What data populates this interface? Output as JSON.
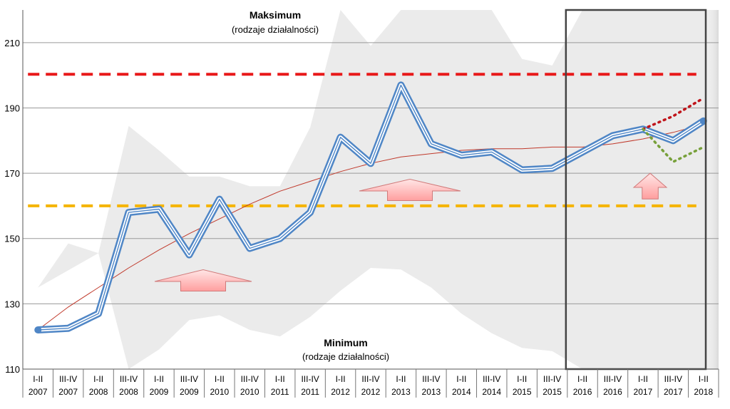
{
  "chart_data": {
    "type": "line",
    "ylim": [
      110,
      220
    ],
    "yticks": [
      "110",
      "130",
      "150",
      "170",
      "190",
      "210"
    ],
    "ytick_values": [
      110,
      130,
      150,
      170,
      190,
      210
    ],
    "categories": [
      [
        "I-II",
        "2007"
      ],
      [
        "III-IV",
        "2007"
      ],
      [
        "I-II",
        "2008"
      ],
      [
        "III-IV",
        "2008"
      ],
      [
        "I-II",
        "2009"
      ],
      [
        "III-IV",
        "2009"
      ],
      [
        "I-II",
        "2010"
      ],
      [
        "III-IV",
        "2010"
      ],
      [
        "I-II",
        "2011"
      ],
      [
        "III-IV",
        "2011"
      ],
      [
        "I-II",
        "2012"
      ],
      [
        "III-IV",
        "2012"
      ],
      [
        "I-II",
        "2013"
      ],
      [
        "III-IV",
        "2013"
      ],
      [
        "I-II",
        "2014"
      ],
      [
        "III-IV",
        "2014"
      ],
      [
        "I-II",
        "2015"
      ],
      [
        "III-IV",
        "2015"
      ],
      [
        "I-II",
        "2016"
      ],
      [
        "III-IV",
        "2016"
      ],
      [
        "I-II",
        "2017"
      ],
      [
        "III-IV",
        "2017"
      ],
      [
        "I-II",
        "2018"
      ]
    ],
    "series": [
      {
        "key": "main",
        "values": [
          122,
          122.5,
          127,
          158,
          159,
          145,
          162,
          147,
          150,
          158,
          181,
          173,
          197,
          179,
          175.5,
          176.5,
          171,
          171.5,
          176.5,
          181.5,
          183.5,
          180,
          186
        ]
      },
      {
        "key": "trend",
        "values": [
          122,
          129,
          135,
          141,
          146.5,
          151.5,
          156,
          160.5,
          164.5,
          167.5,
          170.5,
          173,
          175,
          176,
          177,
          177.5,
          177.5,
          178,
          178,
          179,
          180.5,
          182.5,
          185
        ]
      },
      {
        "key": "max_band",
        "values": [
          null,
          null,
          null,
          184.5,
          177,
          169,
          169,
          166,
          166,
          184,
          220,
          209,
          220,
          220,
          220,
          220,
          205,
          203,
          220,
          220,
          220,
          220,
          220
        ]
      },
      {
        "key": "min_band",
        "values": [
          135,
          148.5,
          145.5,
          110,
          116,
          125,
          126.5,
          122,
          120,
          126,
          134,
          141,
          140.5,
          135,
          127,
          121,
          116.5,
          115.5,
          110,
          110,
          110,
          110,
          110
        ]
      },
      {
        "key": "forecast_up",
        "values": [
          null,
          null,
          null,
          null,
          null,
          null,
          null,
          null,
          null,
          null,
          null,
          null,
          null,
          null,
          null,
          null,
          null,
          null,
          null,
          null,
          183.5,
          187.5,
          193
        ]
      },
      {
        "key": "forecast_down",
        "values": [
          null,
          null,
          null,
          null,
          null,
          null,
          null,
          null,
          null,
          null,
          null,
          null,
          null,
          null,
          null,
          null,
          null,
          null,
          null,
          null,
          183.5,
          173.5,
          178
        ]
      }
    ],
    "reference_lines": [
      {
        "key": "upper",
        "value": 200.3,
        "color": "#e8191a"
      },
      {
        "key": "lower",
        "value": 160,
        "color": "#f5b400"
      }
    ],
    "annotations": {
      "max_title": "Maksimum",
      "max_sub": "(rodzaje działalności)",
      "min_title": "Minimum",
      "min_sub": "(rodzaje działalności)"
    },
    "highlight_range": {
      "from_index": 18,
      "to_index": 22
    },
    "grid": true,
    "colors": {
      "main_line": "#4f86c6",
      "trend": "#c0392b",
      "band": "#ebebeb",
      "forecast_up": "#c0141a",
      "forecast_down": "#77a03a",
      "arrow_fill": "#ffb9b9"
    }
  }
}
